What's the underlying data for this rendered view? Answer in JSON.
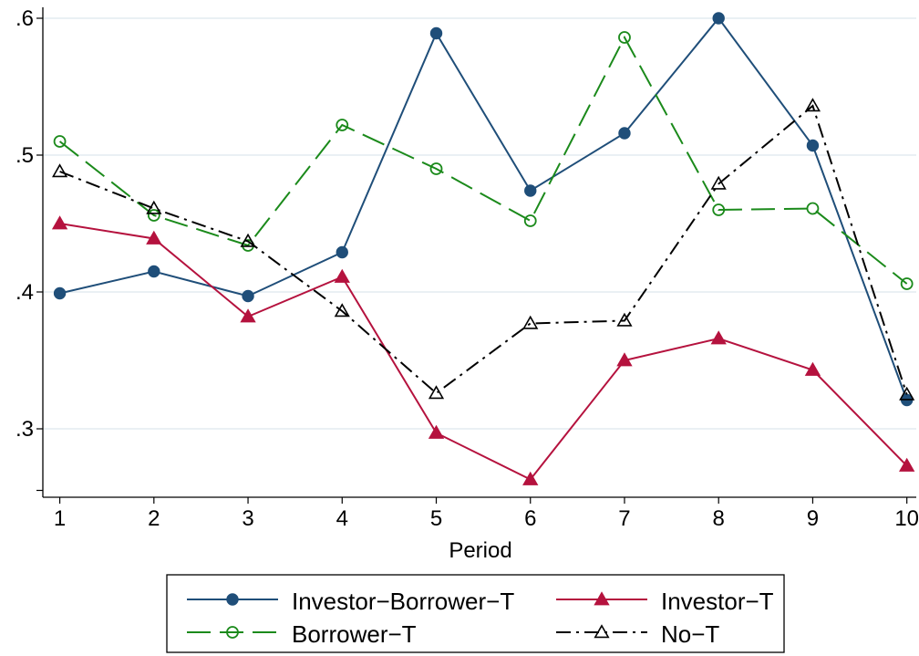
{
  "chart_data": {
    "type": "line",
    "xlabel": "Period",
    "ylabel": "",
    "x": [
      1,
      2,
      3,
      4,
      5,
      6,
      7,
      8,
      9,
      10
    ],
    "x_tick_labels": [
      "1",
      "2",
      "3",
      "4",
      "5",
      "6",
      "7",
      "8",
      "9",
      "10"
    ],
    "y_tick_values": [
      0.3,
      0.4,
      0.5,
      0.6
    ],
    "y_tick_labels": [
      ".3",
      ".4",
      ".5",
      ".6"
    ],
    "xlim": [
      0.82,
      10.1
    ],
    "ylim": [
      0.25,
      0.608
    ],
    "grid": "horizontal",
    "legend_position": "bottom",
    "series": [
      {
        "name": "Investor−Borrower−T",
        "color": "#1f4e79",
        "line_style": "solid",
        "marker": "filled-circle",
        "values": [
          0.399,
          0.415,
          0.397,
          0.429,
          0.589,
          0.474,
          0.516,
          0.6,
          0.507,
          0.321
        ]
      },
      {
        "name": "Investor−T",
        "color": "#b5123e",
        "line_style": "solid",
        "marker": "filled-triangle",
        "values": [
          0.45,
          0.439,
          0.382,
          0.411,
          0.297,
          0.263,
          0.35,
          0.366,
          0.343,
          0.273
        ]
      },
      {
        "name": "Borrower−T",
        "color": "#1b8a1b",
        "line_style": "long-dash",
        "marker": "hollow-circle",
        "values": [
          0.51,
          0.456,
          0.434,
          0.522,
          0.49,
          0.452,
          0.586,
          0.46,
          0.461,
          0.406
        ]
      },
      {
        "name": "No−T",
        "color": "#000000",
        "line_style": "dash-dot",
        "marker": "hollow-triangle",
        "values": [
          0.488,
          0.461,
          0.437,
          0.386,
          0.326,
          0.377,
          0.379,
          0.479,
          0.536,
          0.325
        ]
      }
    ]
  }
}
